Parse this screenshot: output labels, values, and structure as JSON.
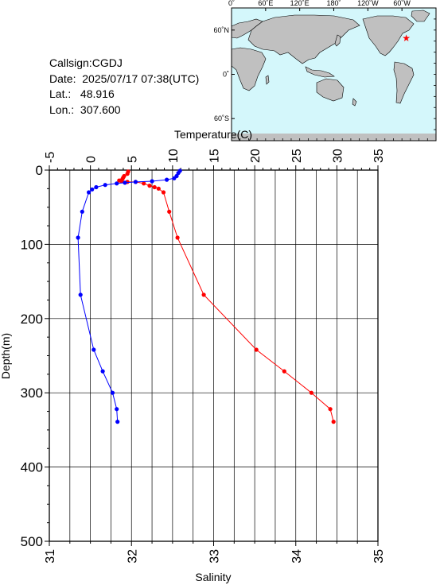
{
  "station": {
    "callsign_label": "Callsign:",
    "callsign": "CGDJ",
    "date_label": "Date:",
    "date": "2025/07/17 07:38(UTC)",
    "lat_label": "Lat.:",
    "lat": "48.916",
    "lon_label": "Lon.:",
    "lon": "307.600"
  },
  "map": {
    "lon_tick_labels": [
      "0˚",
      "60˚E",
      "120˚E",
      "180˚",
      "120˚W",
      "60˚W"
    ],
    "lat_tick_labels": [
      "60˚N",
      "0˚",
      "60˚S"
    ],
    "marker_lon": 307.6,
    "marker_lat": 48.916,
    "colors": {
      "ocean": "#d4f7fb",
      "land": "#c0c0c0",
      "marker": "#ff0000"
    }
  },
  "chart_data": {
    "type": "line",
    "ylabel": "Depth(m)",
    "ylim": [
      0,
      500
    ],
    "yticks": [
      0,
      100,
      200,
      300,
      400,
      500
    ],
    "y_inverted": true,
    "top_axis": {
      "label": "Temperature(C)",
      "range": [
        -5,
        35
      ],
      "ticks": [
        -5,
        0,
        5,
        10,
        15,
        20,
        25,
        30,
        35
      ]
    },
    "bottom_axis": {
      "label": "Salinity",
      "range": [
        31,
        35
      ],
      "ticks": [
        31,
        32,
        33,
        34,
        35
      ]
    },
    "grid": true,
    "series": [
      {
        "quantity": "temperature",
        "axis": "top",
        "color": "#ff0000",
        "points": [
          [
            4.6,
            2
          ],
          [
            4.5,
            5
          ],
          [
            4.1,
            8
          ],
          [
            4.0,
            10
          ],
          [
            3.9,
            12
          ],
          [
            3.5,
            14
          ],
          [
            3.8,
            15
          ],
          [
            4.5,
            16
          ],
          [
            5.5,
            16
          ],
          [
            6.5,
            18
          ],
          [
            7.2,
            21
          ],
          [
            7.8,
            23
          ],
          [
            8.3,
            25
          ],
          [
            8.9,
            30
          ],
          [
            9.6,
            56
          ],
          [
            10.6,
            91
          ],
          [
            13.8,
            168
          ],
          [
            20.2,
            242
          ],
          [
            23.6,
            271
          ],
          [
            26.9,
            300
          ],
          [
            29.2,
            322
          ],
          [
            29.6,
            339
          ]
        ]
      },
      {
        "quantity": "salinity",
        "axis": "bottom",
        "color": "#0000ff",
        "points": [
          [
            32.59,
            1
          ],
          [
            32.57,
            4
          ],
          [
            32.55,
            8
          ],
          [
            32.52,
            11
          ],
          [
            32.43,
            13
          ],
          [
            32.25,
            15
          ],
          [
            32.05,
            16
          ],
          [
            31.92,
            17
          ],
          [
            31.82,
            18
          ],
          [
            31.68,
            20
          ],
          [
            31.57,
            23
          ],
          [
            31.52,
            26
          ],
          [
            31.48,
            30
          ],
          [
            31.4,
            56
          ],
          [
            31.35,
            91
          ],
          [
            31.38,
            168
          ],
          [
            31.54,
            242
          ],
          [
            31.65,
            271
          ],
          [
            31.77,
            300
          ],
          [
            31.82,
            322
          ],
          [
            31.83,
            339
          ]
        ]
      }
    ]
  }
}
